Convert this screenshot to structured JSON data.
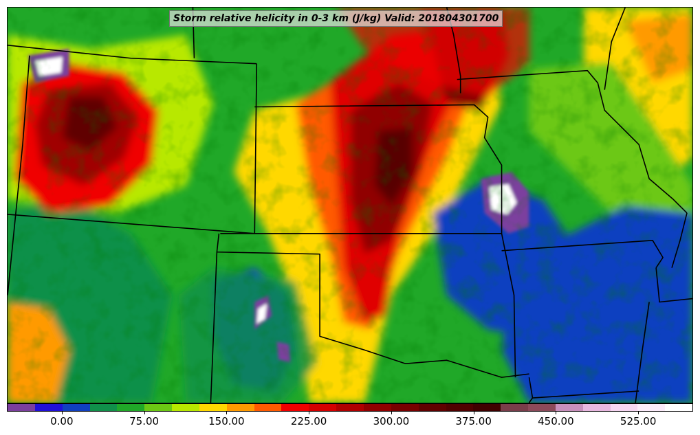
{
  "title": "Storm relative helicity in 0-3 km (J/kg) Valid: 201804301700",
  "colorbar": {
    "min": -50,
    "max": 575,
    "step": 25,
    "colors": [
      "#7b3f9e",
      "#2010d8",
      "#1040c0",
      "#10904a",
      "#20a828",
      "#6cc814",
      "#b8e800",
      "#ffd800",
      "#ff9a00",
      "#ff5a00",
      "#f00000",
      "#d40000",
      "#b00000",
      "#900000",
      "#780000",
      "#600000",
      "#500000",
      "#400000",
      "#7a3d4a",
      "#8c4a5a",
      "#c890bc",
      "#e8b8e0",
      "#f6d6f2",
      "#fcecfb",
      "#ffffff"
    ],
    "tick_values": [
      0,
      75,
      150,
      225,
      300,
      375,
      450,
      525
    ],
    "tick_labels": [
      "0.00",
      "75.00",
      "150.00",
      "225.00",
      "300.00",
      "375.00",
      "450.00",
      "525.00"
    ]
  }
}
